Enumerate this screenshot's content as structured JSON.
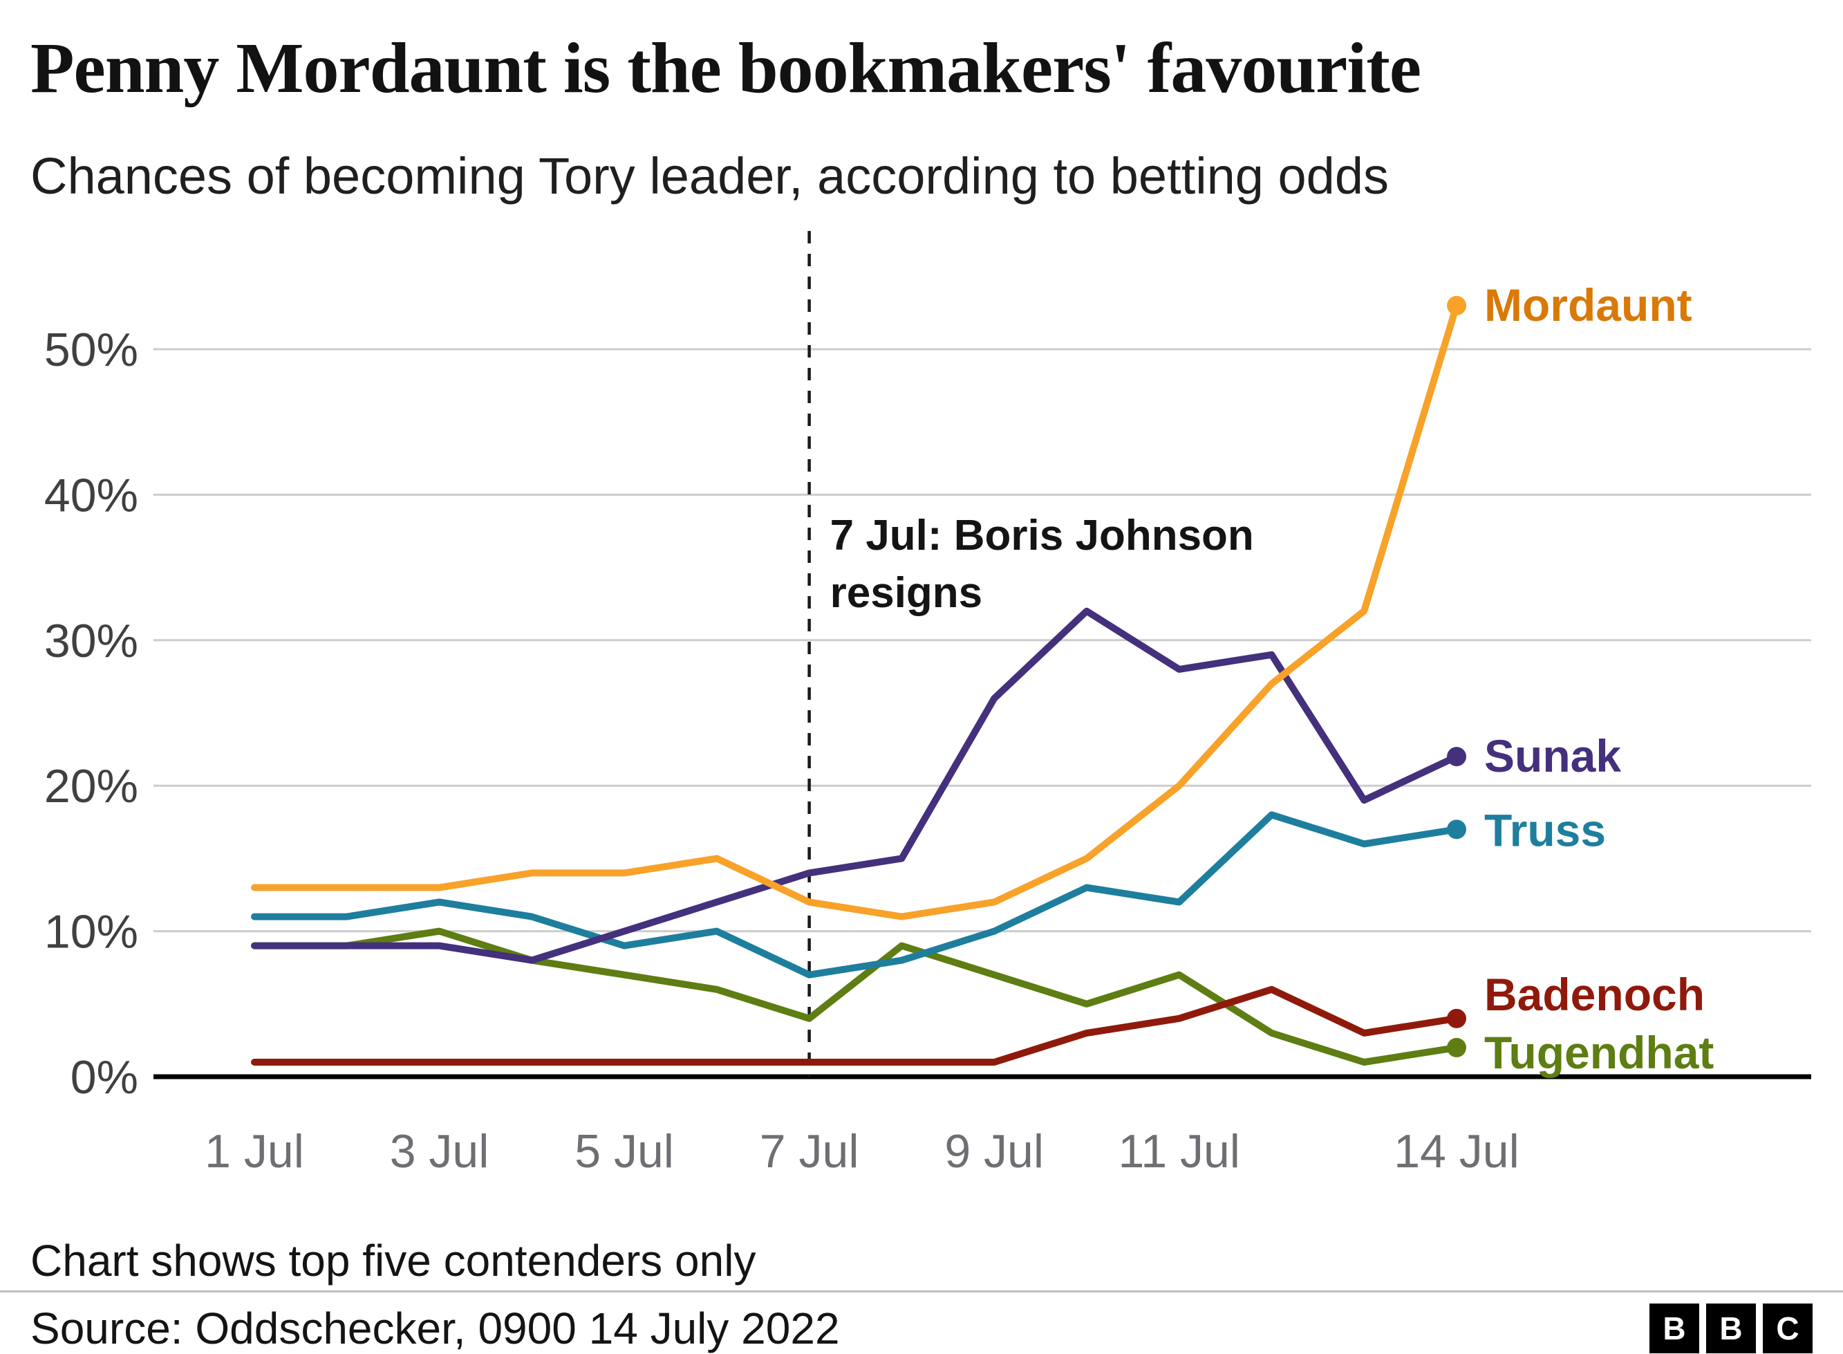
{
  "header": {
    "title": "Penny Mordaunt is the bookmakers' favourite",
    "subtitle": "Chances of becoming Tory leader, according to betting odds"
  },
  "annotation": {
    "lines": [
      "7 Jul: Boris Johnson",
      "resigns"
    ],
    "day": 7
  },
  "footer": {
    "note": "Chart shows top five contenders only",
    "source": "Source: Oddschecker, 0900 14 July 2022",
    "logo_letters": [
      "B",
      "B",
      "C"
    ]
  },
  "chart_data": {
    "type": "line",
    "title": "Penny Mordaunt is the bookmakers' favourite",
    "subtitle": "Chances of becoming Tory leader, according to betting odds",
    "x_unit": "day of July 2022",
    "x": [
      1,
      2,
      3,
      4,
      5,
      6,
      7,
      8,
      9,
      10,
      11,
      12,
      13,
      14
    ],
    "xticks": [
      {
        "day": 1,
        "label": "1 Jul"
      },
      {
        "day": 3,
        "label": "3 Jul"
      },
      {
        "day": 5,
        "label": "5 Jul"
      },
      {
        "day": 7,
        "label": "7 Jul"
      },
      {
        "day": 9,
        "label": "9 Jul"
      },
      {
        "day": 11,
        "label": "11 Jul"
      },
      {
        "day": 14,
        "label": "14 Jul"
      }
    ],
    "yticks": [
      0,
      10,
      20,
      30,
      40,
      50
    ],
    "y_suffix": "%",
    "ylim": [
      0,
      58
    ],
    "grid": true,
    "grid_color": "#cccccc",
    "axis_color": "#000000",
    "event_line": {
      "day": 7,
      "label": "7 Jul: Boris Johnson resigns"
    },
    "legend_position": "end-of-line-labels",
    "series": [
      {
        "name": "Tugendhat",
        "color": "#5e7d12",
        "values": [
          9,
          9,
          10,
          8,
          7,
          6,
          4,
          9,
          7,
          5,
          7,
          3,
          1,
          2
        ],
        "label_dy": 30
      },
      {
        "name": "Badenoch",
        "color": "#8f1a0b",
        "values": [
          1,
          1,
          1,
          1,
          1,
          1,
          1,
          1,
          1,
          3,
          4,
          6,
          3,
          4
        ],
        "label_dy": -12
      },
      {
        "name": "Truss",
        "color": "#1e7e9e",
        "values": [
          11,
          11,
          12,
          11,
          9,
          10,
          7,
          8,
          10,
          13,
          12,
          18,
          16,
          17
        ],
        "label_dy": 24
      },
      {
        "name": "Sunak",
        "color": "#44307c",
        "values": [
          9,
          9,
          9,
          8,
          10,
          12,
          14,
          15,
          26,
          32,
          28,
          29,
          19,
          22
        ],
        "label_dy": 22
      },
      {
        "name": "Mordaunt",
        "color": "#f8a229",
        "label_color": "#d97908",
        "values": [
          13,
          13,
          13,
          14,
          14,
          15,
          12,
          11,
          12,
          15,
          20,
          27,
          32,
          53
        ],
        "label_dy": 22
      }
    ]
  }
}
